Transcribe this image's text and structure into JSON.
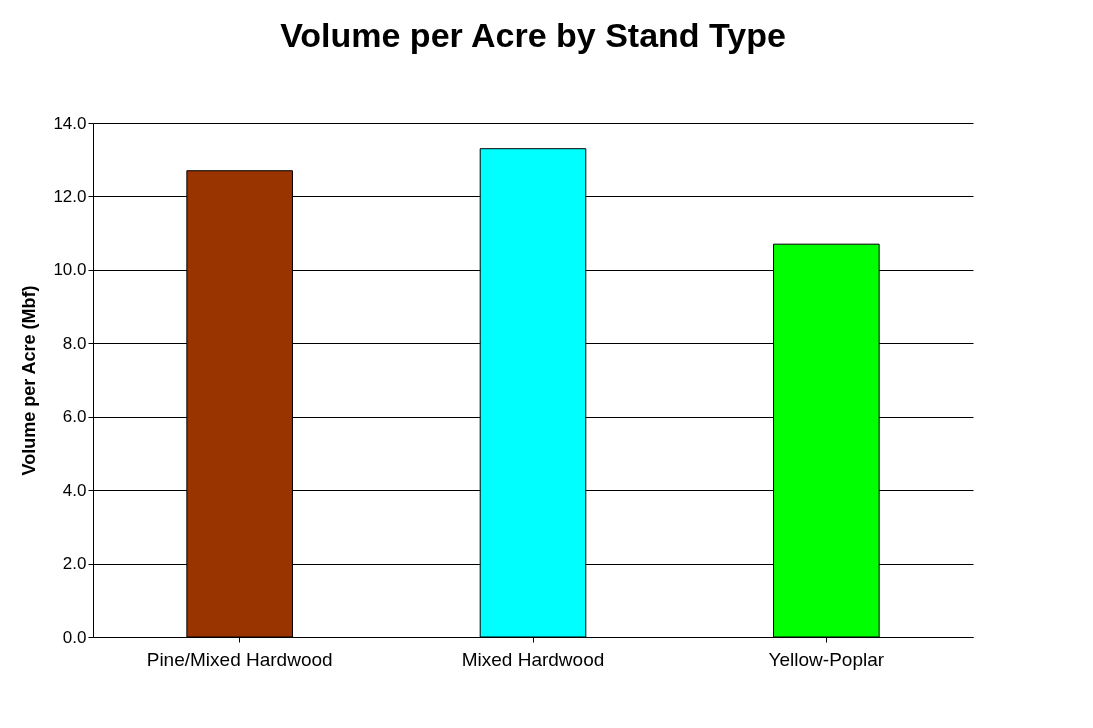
{
  "chart_data": {
    "type": "bar",
    "title": "Volume per Acre by Stand Type",
    "ylabel": "Volume per Acre (Mbf)",
    "categories": [
      "Pine/Mixed Hardwood",
      "Mixed Hardwood",
      "Yellow-Poplar"
    ],
    "values": [
      12.7,
      13.3,
      10.7
    ],
    "colors": [
      "#993300",
      "#00ffff",
      "#00ff00"
    ],
    "ylim": [
      0,
      14
    ],
    "yticks": [
      {
        "value": 0,
        "label": "0.0"
      },
      {
        "value": 2,
        "label": "2.0"
      },
      {
        "value": 4,
        "label": "4.0"
      },
      {
        "value": 6,
        "label": "6.0"
      },
      {
        "value": 8,
        "label": "8.0"
      },
      {
        "value": 10,
        "label": "10.0"
      },
      {
        "value": 12,
        "label": "12.0"
      },
      {
        "value": 14,
        "label": "14.0"
      }
    ],
    "grid": "y"
  }
}
